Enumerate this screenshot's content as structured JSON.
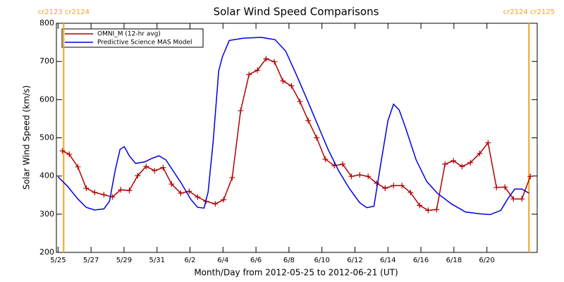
{
  "chart_data": {
    "type": "line",
    "title": "Solar Wind Speed Comparisons",
    "xlabel": "Month/Day from 2012-05-25 to 2012-06-21 (UT)",
    "ylabel": "Solar Wind Speed (km/s)",
    "xlim": [
      -0.1,
      29.05
    ],
    "ylim": [
      200,
      800
    ],
    "xticks": [
      {
        "value": 0,
        "label": "5/25"
      },
      {
        "value": 2,
        "label": "5/27"
      },
      {
        "value": 4,
        "label": "5/29"
      },
      {
        "value": 6,
        "label": "5/31"
      },
      {
        "value": 8,
        "label": "6/2"
      },
      {
        "value": 10,
        "label": "6/4"
      },
      {
        "value": 12,
        "label": "6/6"
      },
      {
        "value": 14,
        "label": "6/8"
      },
      {
        "value": 16,
        "label": "6/10"
      },
      {
        "value": 18,
        "label": "6/12"
      },
      {
        "value": 20,
        "label": "6/14"
      },
      {
        "value": 22,
        "label": "6/16"
      },
      {
        "value": 24,
        "label": "6/18"
      },
      {
        "value": 26,
        "label": "6/20"
      }
    ],
    "yticks": [
      200,
      300,
      400,
      500,
      600,
      700,
      800
    ],
    "legend": "top-left",
    "annotations": [
      {
        "x": 0.34,
        "label": "cr2123 cr2124",
        "color": "#f5a020"
      },
      {
        "x": 28.55,
        "label": "cr2124 cr2125",
        "color": "#f5a020"
      }
    ],
    "series": [
      {
        "name": "OMNI_M (12-hr avg)",
        "color": "#b00000",
        "marker": "plus",
        "x": [
          0.26,
          0.68,
          1.2,
          1.71,
          2.22,
          2.78,
          3.29,
          3.8,
          4.32,
          4.83,
          5.34,
          5.85,
          6.37,
          6.88,
          7.44,
          7.95,
          8.46,
          8.97,
          9.53,
          10.04,
          10.56,
          11.07,
          11.58,
          12.09,
          12.61,
          13.12,
          13.63,
          14.15,
          14.66,
          15.17,
          15.68,
          16.2,
          16.75,
          17.26,
          17.78,
          18.29,
          18.8,
          19.32,
          19.83,
          20.34,
          20.85,
          21.37,
          21.92,
          22.44,
          22.95,
          23.46,
          23.97,
          24.49,
          25,
          25.56,
          26.07,
          26.58,
          27.09,
          27.61,
          28.12,
          28.63
        ],
        "values": [
          466,
          457,
          424,
          368,
          357,
          351,
          345,
          364,
          362,
          401,
          425,
          414,
          422,
          379,
          355,
          360,
          345,
          334,
          327,
          338,
          396,
          571,
          666,
          677,
          707,
          699,
          649,
          636,
          595,
          545,
          500,
          444,
          427,
          431,
          399,
          403,
          399,
          381,
          368,
          375,
          375,
          357,
          323,
          310,
          312,
          431,
          440,
          425,
          435,
          459,
          487,
          370,
          371,
          340,
          340,
          399
        ]
      },
      {
        "name": "Predictive Science MAS Model",
        "color": "#0000e0",
        "x": [
          0,
          0.56,
          1.2,
          1.71,
          2.22,
          2.78,
          3.12,
          3.46,
          3.76,
          4.02,
          4.32,
          4.7,
          5.26,
          5.68,
          6.11,
          6.54,
          6.97,
          7.48,
          8.03,
          8.46,
          8.85,
          9.1,
          9.4,
          9.74,
          9.96,
          10.38,
          11.24,
          12.31,
          13.16,
          13.8,
          14.44,
          15.09,
          15.73,
          16.37,
          17.01,
          17.65,
          18.29,
          18.72,
          19.15,
          19.57,
          20,
          20.34,
          20.68,
          21.07,
          21.71,
          22.35,
          22.99,
          23.85,
          24.7,
          25.56,
          26.2,
          26.84,
          27.26,
          27.69,
          28.12,
          28.55
        ],
        "values": [
          398,
          374,
          340,
          318,
          311,
          314,
          334,
          414,
          470,
          477,
          453,
          433,
          437,
          446,
          453,
          442,
          414,
          381,
          340,
          318,
          316,
          358,
          489,
          675,
          712,
          755,
          761,
          763,
          757,
          727,
          666,
          601,
          535,
          470,
          414,
          368,
          330,
          317,
          321,
          433,
          545,
          588,
          573,
          526,
          442,
          386,
          355,
          327,
          306,
          301,
          299,
          310,
          340,
          366,
          366,
          355
        ]
      }
    ]
  }
}
